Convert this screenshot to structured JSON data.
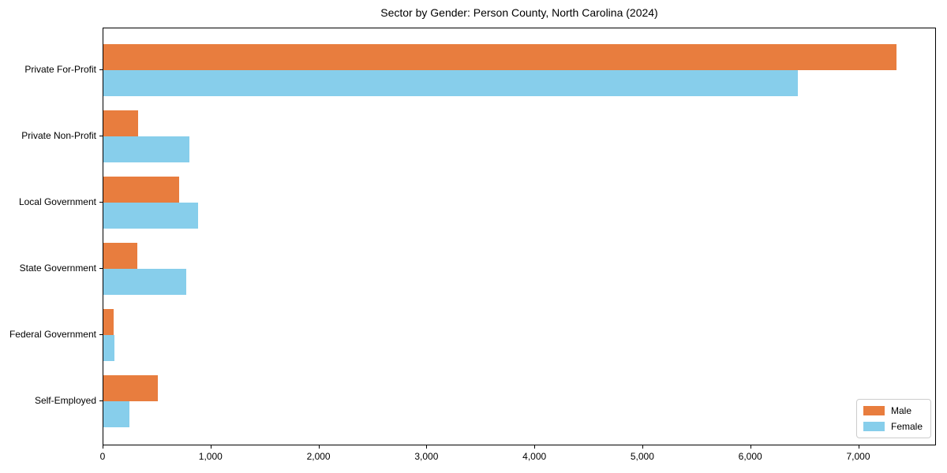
{
  "chart_data": {
    "type": "bar",
    "orientation": "horizontal",
    "title": "Sector by Gender: Person County, North Carolina (2024)",
    "xlabel": "",
    "ylabel": "",
    "categories": [
      "Private For-Profit",
      "Private Non-Profit",
      "Local Government",
      "State Government",
      "Federal Government",
      "Self-Employed"
    ],
    "series": [
      {
        "name": "Male",
        "color": "#e87d3e",
        "values": [
          7350,
          320,
          700,
          315,
          95,
          505
        ]
      },
      {
        "name": "Female",
        "color": "#87ceeb",
        "values": [
          6430,
          800,
          880,
          770,
          105,
          240
        ]
      }
    ],
    "xlim": [
      0,
      7720
    ],
    "xticks": [
      0,
      1000,
      2000,
      3000,
      4000,
      5000,
      6000,
      7000
    ],
    "xtick_labels": [
      "0",
      "1,000",
      "2,000",
      "3,000",
      "4,000",
      "5,000",
      "6,000",
      "7,000"
    ],
    "grid": false,
    "legend": {
      "position": "lower right",
      "entries": [
        "Male",
        "Female"
      ]
    }
  }
}
